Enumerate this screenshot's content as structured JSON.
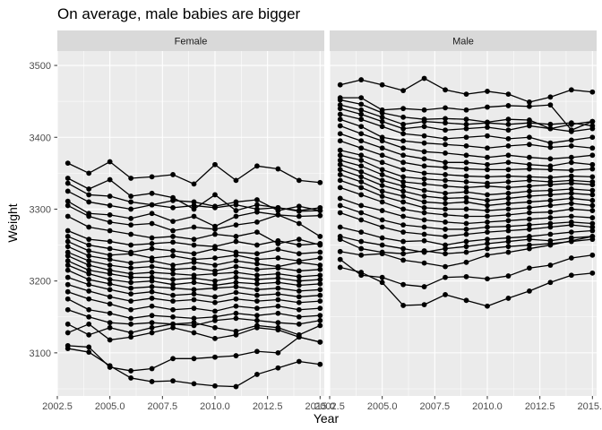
{
  "chart_data": {
    "type": "line",
    "title": "On average, male babies are bigger",
    "xlabel": "Year",
    "ylabel": "Weight",
    "facets": [
      "Female",
      "Male"
    ],
    "xlim": [
      2002.5,
      2015.2
    ],
    "ylim": [
      3040,
      3520
    ],
    "xticks": [
      2002.5,
      2005.0,
      2007.5,
      2010.0,
      2012.5,
      2015.0
    ],
    "xtick_labels": [
      "2002.5",
      "2005.0",
      "2007.5",
      "2010.0",
      "2012.5",
      "2015.0"
    ],
    "yticks": [
      3100,
      3200,
      3300,
      3400,
      3500
    ],
    "ytick_labels": [
      "3100",
      "3200",
      "3300",
      "3400",
      "3500"
    ],
    "grid": true,
    "years": [
      2003,
      2004,
      2005,
      2006,
      2007,
      2008,
      2009,
      2010,
      2011,
      2012,
      2013,
      2014,
      2015
    ],
    "panels": [
      {
        "facet": "Female",
        "series": [
          {
            "values": [
              3364,
              3350,
              3366,
              3343,
              3345,
              3348,
              3335,
              3362,
              3340,
              3360,
              3356,
              3340,
              3337
            ]
          },
          {
            "values": [
              3343,
              3328,
              3341,
              3318,
              3322,
              3316,
              3300,
              3320,
              3298,
              3306,
              3302,
              3298,
              3302
            ]
          },
          {
            "values": [
              3336,
              3320,
              3318,
              3310,
              3306,
              3312,
              3310,
              3304,
              3310,
              3313,
              3298,
              3304,
              3298
            ]
          },
          {
            "values": [
              3325,
              3310,
              3305,
              3300,
              3306,
              3302,
              3305,
              3302,
              3306,
              3300,
              3302,
              3297,
              3298
            ]
          },
          {
            "values": [
              3311,
              3294,
              3292,
              3287,
              3294,
              3283,
              3290,
              3276,
              3290,
              3296,
              3292,
              3290,
              3291
            ]
          },
          {
            "values": [
              3305,
              3290,
              3282,
              3278,
              3280,
              3270,
              3275,
              3272,
              3278,
              3282,
              3292,
              3280,
              3262
            ]
          },
          {
            "values": [
              3290,
              3275,
              3270,
              3265,
              3260,
              3262,
              3258,
              3265,
              3262,
              3268,
              3252,
              3258,
              3250
            ]
          },
          {
            "values": [
              3270,
              3258,
              3255,
              3250,
              3252,
              3254,
              3250,
              3248,
              3255,
              3250,
              3256,
              3250,
              3252
            ]
          },
          {
            "values": [
              3262,
              3250,
              3245,
              3240,
              3245,
              3242,
              3238,
              3245,
              3240,
              3238,
              3244,
              3238,
              3240
            ]
          },
          {
            "values": [
              3255,
              3242,
              3236,
              3238,
              3232,
              3235,
              3230,
              3232,
              3236,
              3230,
              3232,
              3228,
              3232
            ]
          },
          {
            "values": [
              3248,
              3235,
              3230,
              3225,
              3228,
              3222,
              3226,
              3222,
              3228,
              3224,
              3220,
              3226,
              3222
            ]
          },
          {
            "values": [
              3240,
              3228,
              3222,
              3218,
              3220,
              3216,
              3218,
              3214,
              3220,
              3216,
              3218,
              3214,
              3216
            ]
          },
          {
            "values": [
              3235,
              3222,
              3215,
              3210,
              3212,
              3210,
              3208,
              3210,
              3212,
              3208,
              3210,
              3206,
              3208
            ]
          },
          {
            "values": [
              3228,
              3215,
              3210,
              3205,
              3205,
              3202,
              3204,
              3200,
              3205,
              3202,
              3204,
              3200,
              3202
            ]
          },
          {
            "values": [
              3222,
              3210,
              3202,
              3198,
              3200,
              3195,
              3198,
              3194,
              3198,
              3196,
              3198,
              3194,
              3196
            ]
          },
          {
            "values": [
              3215,
              3202,
              3196,
              3190,
              3192,
              3190,
              3188,
              3190,
              3192,
              3188,
              3190,
              3186,
              3188
            ]
          },
          {
            "values": [
              3205,
              3195,
              3188,
              3182,
              3185,
              3180,
              3182,
              3178,
              3184,
              3180,
              3182,
              3178,
              3180
            ]
          },
          {
            "values": [
              3195,
              3186,
              3178,
              3172,
              3176,
              3172,
              3174,
              3170,
              3175,
              3172,
              3174,
              3170,
              3172
            ]
          },
          {
            "values": [
              3185,
              3175,
              3168,
              3160,
              3165,
              3160,
              3162,
              3158,
              3165,
              3162,
              3165,
              3160,
              3162
            ]
          },
          {
            "values": [
              3175,
              3160,
              3155,
              3148,
              3152,
              3150,
              3148,
              3150,
              3155,
              3152,
              3155,
              3150,
              3152
            ]
          },
          {
            "values": [
              3160,
              3150,
              3142,
              3140,
              3142,
              3140,
              3138,
              3145,
              3148,
              3145,
              3142,
              3140,
              3145
            ]
          },
          {
            "values": [
              3140,
              3125,
              3135,
              3128,
              3135,
              3140,
              3142,
              3135,
              3130,
              3138,
              3135,
              3125,
              3138
            ]
          },
          {
            "values": [
              3128,
              3140,
              3118,
              3122,
              3128,
              3135,
              3128,
              3120,
              3125,
              3135,
              3132,
              3122,
              3115
            ]
          },
          {
            "values": [
              3110,
              3108,
              3080,
              3075,
              3078,
              3092,
              3092,
              3094,
              3096,
              3102,
              3100,
              3122,
              3115
            ]
          },
          {
            "values": [
              3106,
              3101,
              3082,
              3065,
              3060,
              3061,
              3057,
              3054,
              3053,
              3070,
              3079,
              3088,
              3084
            ]
          }
        ]
      },
      {
        "facet": "Male",
        "series": [
          {
            "values": [
              3473,
              3480,
              3473,
              3465,
              3482,
              3466,
              3460,
              3464,
              3460,
              3449,
              3456,
              3466,
              3463
            ]
          },
          {
            "values": [
              3455,
              3455,
              3438,
              3440,
              3438,
              3441,
              3438,
              3442,
              3444,
              3443,
              3445,
              3410,
              3422
            ]
          },
          {
            "values": [
              3452,
              3446,
              3434,
              3428,
              3425,
              3426,
              3425,
              3421,
              3425,
              3424,
              3412,
              3418,
              3422
            ]
          },
          {
            "values": [
              3445,
              3438,
              3428,
              3418,
              3422,
              3420,
              3418,
              3420,
              3418,
              3420,
              3418,
              3420,
              3416
            ]
          },
          {
            "values": [
              3440,
              3432,
              3422,
              3412,
              3415,
              3410,
              3412,
              3414,
              3410,
              3416,
              3412,
              3408,
              3412
            ]
          },
          {
            "values": [
              3432,
              3425,
              3415,
              3405,
              3402,
              3398,
              3400,
              3402,
              3398,
              3400,
              3392,
              3396,
              3400
            ]
          },
          {
            "values": [
              3425,
              3415,
              3400,
              3395,
              3392,
              3390,
              3388,
              3385,
              3388,
              3390,
              3386,
              3388,
              3385
            ]
          },
          {
            "values": [
              3416,
              3405,
              3395,
              3385,
              3380,
              3378,
              3375,
              3372,
              3375,
              3372,
              3370,
              3372,
              3375
            ]
          },
          {
            "values": [
              3405,
              3395,
              3385,
              3375,
              3370,
              3365,
              3365,
              3362,
              3365,
              3362,
              3360,
              3365,
              3362
            ]
          },
          {
            "values": [
              3395,
              3385,
              3375,
              3365,
              3360,
              3358,
              3356,
              3355,
              3355,
              3356,
              3355,
              3354,
              3356
            ]
          },
          {
            "values": [
              3382,
              3375,
              3365,
              3355,
              3350,
              3348,
              3346,
              3345,
              3346,
              3345,
              3344,
              3346,
              3345
            ]
          },
          {
            "values": [
              3375,
              3368,
              3355,
              3345,
              3342,
              3340,
              3338,
              3336,
              3338,
              3340,
              3338,
              3340,
              3338
            ]
          },
          {
            "values": [
              3368,
              3360,
              3348,
              3338,
              3335,
              3332,
              3330,
              3332,
              3330,
              3332,
              3334,
              3336,
              3334
            ]
          },
          {
            "values": [
              3362,
              3352,
              3340,
              3332,
              3326,
              3322,
              3324,
              3320,
              3322,
              3325,
              3326,
              3328,
              3326
            ]
          },
          {
            "values": [
              3355,
              3345,
              3333,
              3325,
              3318,
              3315,
              3316,
              3312,
              3315,
              3318,
              3320,
              3322,
              3320
            ]
          },
          {
            "values": [
              3348,
              3338,
              3325,
              3318,
              3310,
              3308,
              3310,
              3305,
              3308,
              3310,
              3312,
              3315,
              3312
            ]
          },
          {
            "values": [
              3340,
              3330,
              3318,
              3310,
              3302,
              3300,
              3300,
              3298,
              3300,
              3302,
              3305,
              3308,
              3305
            ]
          },
          {
            "values": [
              3330,
              3320,
              3310,
              3300,
              3295,
              3292,
              3290,
              3290,
              3292,
              3295,
              3296,
              3300,
              3298
            ]
          },
          {
            "values": [
              3315,
              3305,
              3298,
              3290,
              3285,
              3282,
              3280,
              3282,
              3284,
              3286,
              3288,
              3290,
              3288
            ]
          },
          {
            "values": [
              3305,
              3295,
              3285,
              3278,
              3275,
              3272,
              3272,
              3275,
              3276,
              3278,
              3280,
              3282,
              3280
            ]
          },
          {
            "values": [
              3295,
              3285,
              3275,
              3268,
              3265,
              3262,
              3265,
              3268,
              3270,
              3272,
              3275,
              3278,
              3275
            ]
          },
          {
            "values": [
              3275,
              3268,
              3260,
              3255,
              3256,
              3250,
              3255,
              3258,
              3260,
              3262,
              3265,
              3268,
              3270
            ]
          },
          {
            "values": [
              3262,
              3255,
              3250,
              3245,
              3240,
              3245,
              3248,
              3252,
              3255,
              3258,
              3256,
              3260,
              3262
            ]
          },
          {
            "values": [
              3258,
              3245,
              3240,
              3238,
              3242,
              3238,
              3240,
              3245,
              3248,
              3250,
              3252,
              3255,
              3258
            ]
          },
          {
            "values": [
              3241,
              3236,
              3238,
              3229,
              3225,
              3220,
              3226,
              3236,
              3240,
              3245,
              3250,
              3256,
              3262
            ]
          },
          {
            "values": [
              3230,
              3208,
              3205,
              3195,
              3192,
              3205,
              3206,
              3203,
              3207,
              3218,
              3222,
              3232,
              3236
            ]
          },
          {
            "values": [
              3219,
              3212,
              3198,
              3166,
              3167,
              3181,
              3173,
              3165,
              3176,
              3186,
              3198,
              3208,
              3211
            ]
          }
        ]
      }
    ]
  }
}
